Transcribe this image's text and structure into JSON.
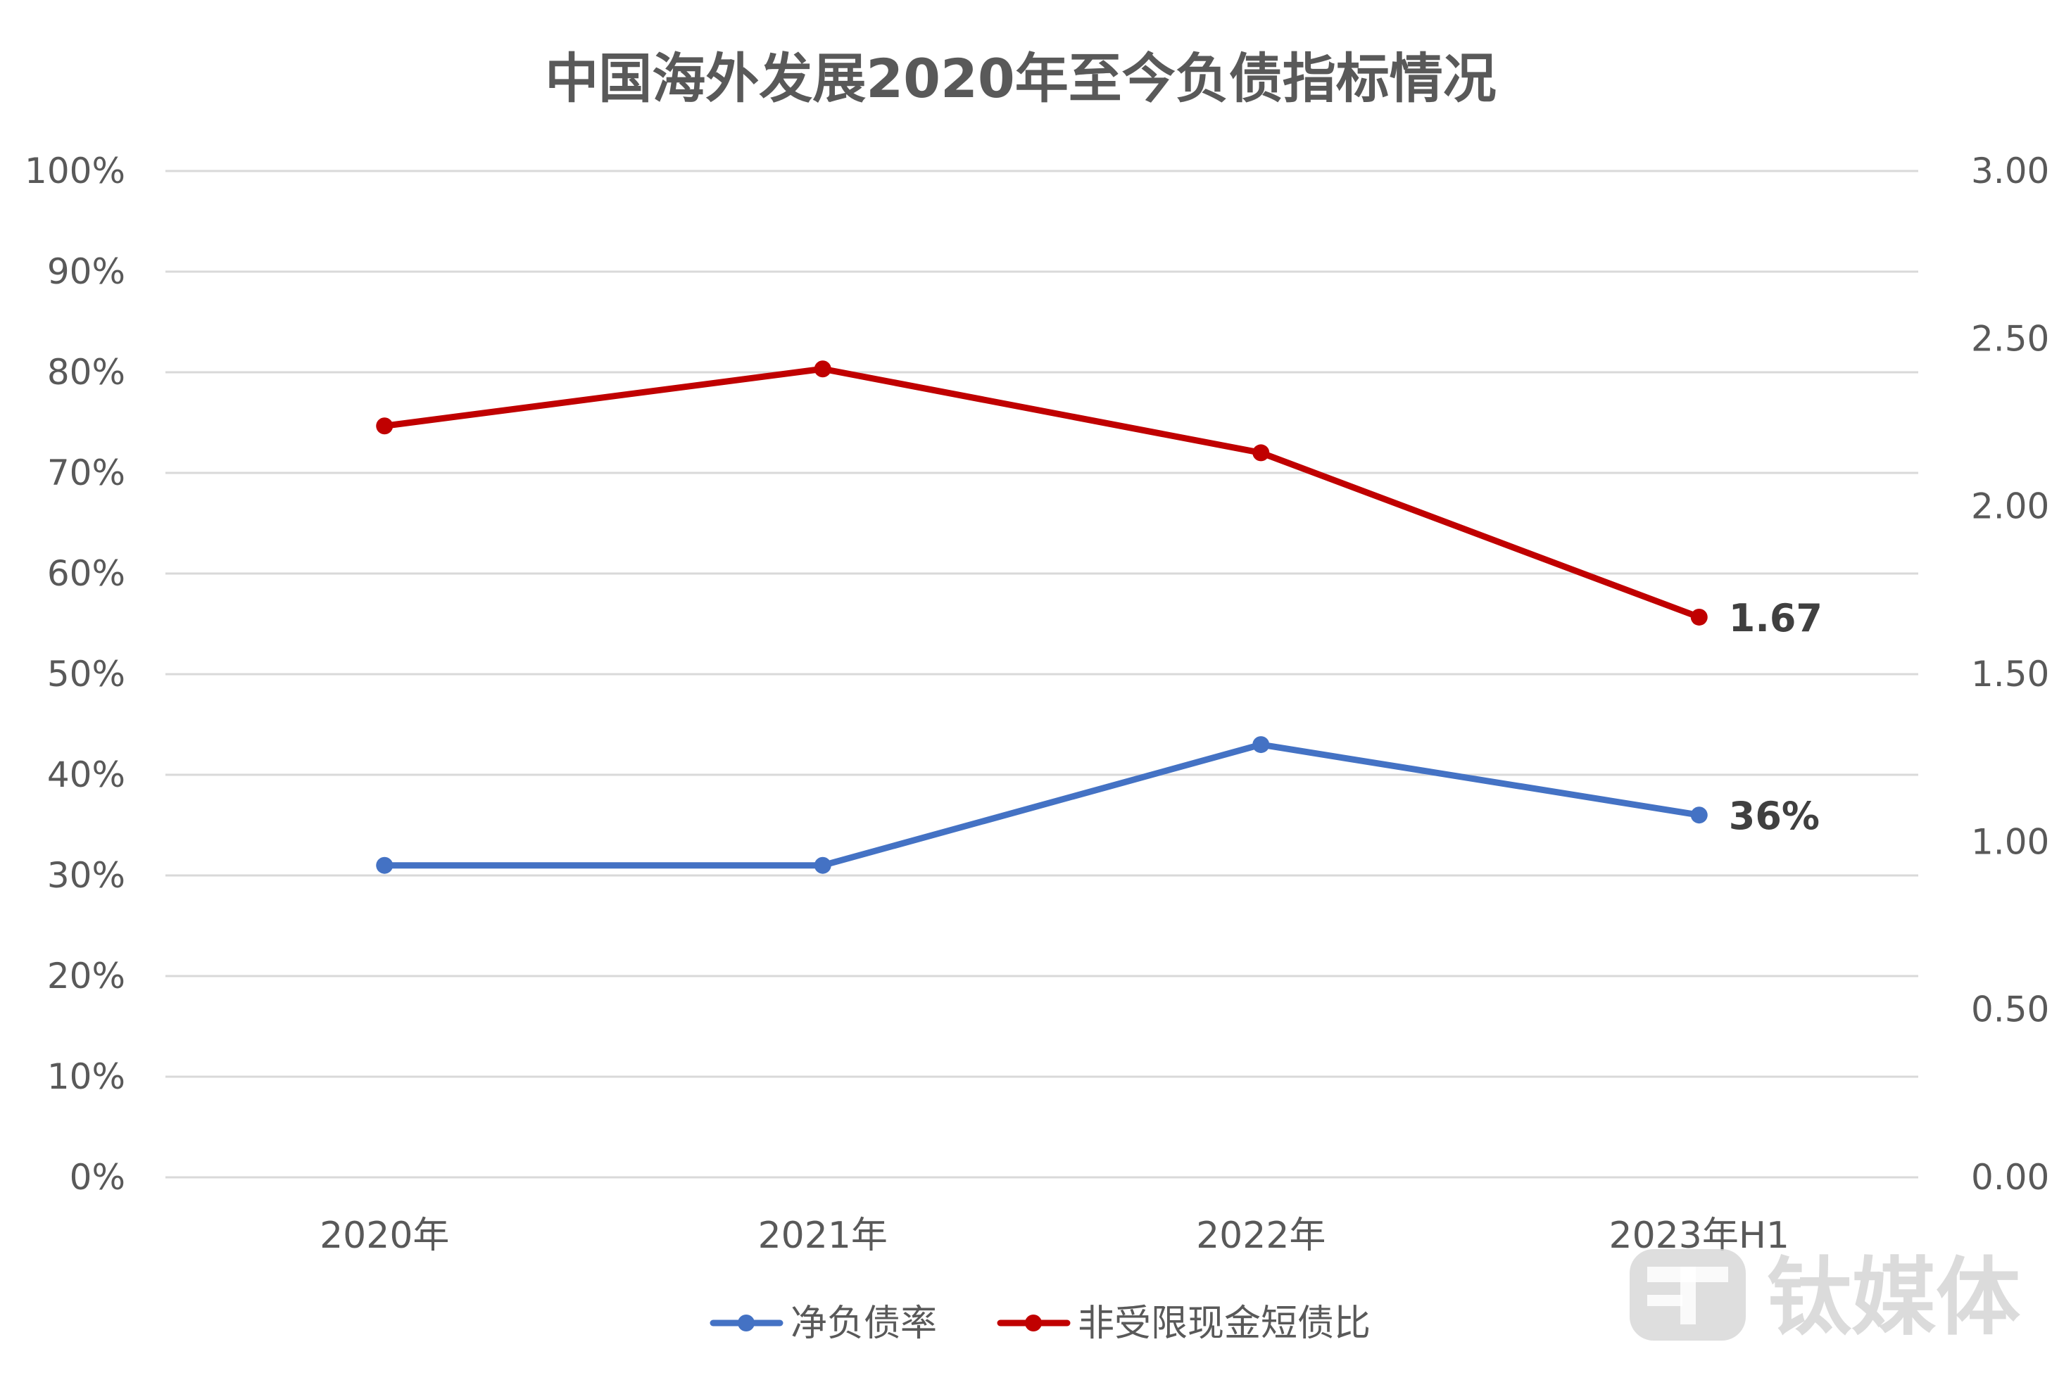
{
  "chart_data": {
    "type": "line",
    "title": "中国海外发展2020年至今负债指标情况",
    "categories": [
      "2020年",
      "2021年",
      "2022年",
      "2023年H1"
    ],
    "y_left": {
      "ticks": [
        "0%",
        "10%",
        "20%",
        "30%",
        "40%",
        "50%",
        "60%",
        "70%",
        "80%",
        "90%",
        "100%"
      ],
      "range": [
        0,
        100
      ]
    },
    "y_right": {
      "ticks": [
        "0.00",
        "0.50",
        "1.00",
        "1.50",
        "2.00",
        "2.50",
        "3.00"
      ],
      "range": [
        0,
        3
      ]
    },
    "grid": true,
    "legend_position": "bottom",
    "series": [
      {
        "name": "净负债率",
        "axis": "left",
        "color": "#4472c4",
        "values": [
          31,
          31,
          43,
          36
        ],
        "end_label": "36%"
      },
      {
        "name": "非受限现金短债比",
        "axis": "right",
        "color": "#c00000",
        "values": [
          2.24,
          2.41,
          2.16,
          1.67
        ],
        "end_label": "1.67"
      }
    ]
  },
  "watermark": {
    "text": "钛媒体",
    "logo_icon": "tmt-logo-icon"
  }
}
